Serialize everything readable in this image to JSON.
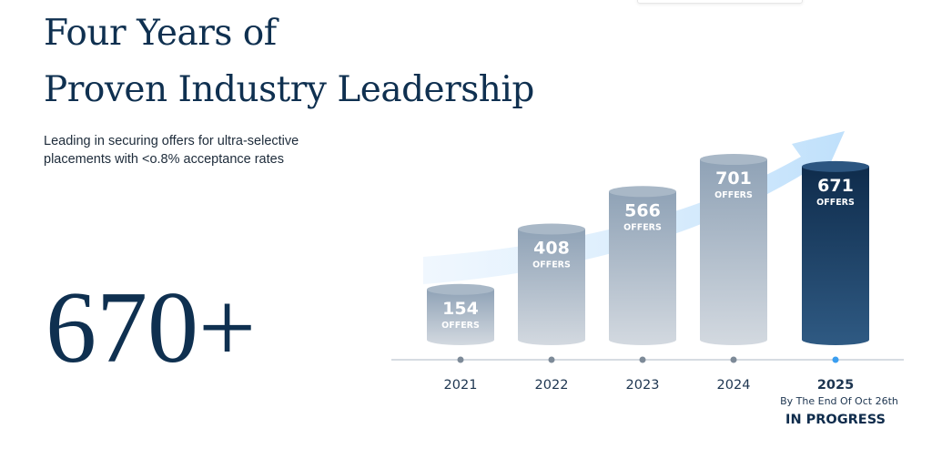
{
  "header": {
    "title_line1": "Four Years of",
    "title_line2": "Proven Industry Leadership",
    "subtitle": "Leading in securing offers for ultra-selective placements with <o.8% acceptance rates"
  },
  "headline_stat": "670+",
  "chart_data": {
    "type": "bar",
    "style": "cylinder",
    "categories": [
      "2021",
      "2022",
      "2023",
      "2024",
      "2025"
    ],
    "values": [
      154,
      408,
      566,
      701,
      671
    ],
    "value_unit_label": "OFFERS",
    "highlight_category": "2025",
    "annotations": {
      "2025_note": "By The End Of Oct 26th",
      "2025_status": "IN PROGRESS"
    },
    "trend_arrow": true,
    "grid": false,
    "colors": {
      "bar": "#9fb0c2",
      "highlight_bar": "#163a60",
      "arrow": "#cde6fb",
      "axis": "#c8d0d8",
      "dot": "#7d8a98",
      "highlight_dot": "#3a9ef0",
      "text": "#1d3550"
    }
  }
}
